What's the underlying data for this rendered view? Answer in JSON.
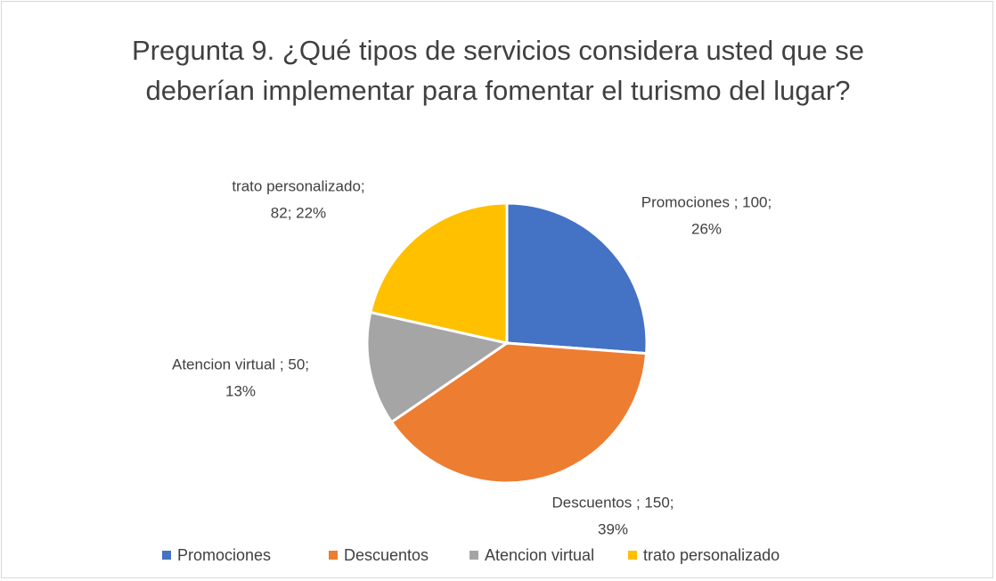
{
  "chart_data": {
    "type": "pie",
    "title": "Pregunta 9. ¿Qué tipos de servicios considera usted que se deberían implementar para fomentar el turismo del lugar?",
    "categories": [
      "Promociones",
      "Descuentos",
      "Atencion virtual",
      "trato personalizado"
    ],
    "values": [
      100,
      150,
      50,
      82
    ],
    "value_labels": [
      [
        "Promociones ; 100;",
        "26%"
      ],
      [
        "Descuentos ; 150;",
        "39%"
      ],
      [
        "Atencion virtual ; 50;",
        "13%"
      ],
      [
        "trato personalizado;",
        "82; 22%"
      ]
    ],
    "colors": [
      "#4472c4",
      "#ed7d31",
      "#a5a5a5",
      "#ffc000"
    ],
    "legend": "bottom"
  }
}
